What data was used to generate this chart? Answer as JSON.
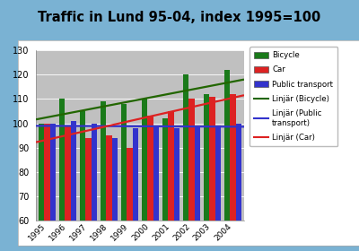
{
  "title": "Traffic in Lund 95-04, index 1995=100",
  "years": [
    1995,
    1996,
    1997,
    1998,
    1999,
    2000,
    2001,
    2002,
    2003,
    2004
  ],
  "bicycle": [
    100,
    110,
    105,
    109,
    108,
    110,
    102,
    120,
    112,
    122
  ],
  "car": [
    100,
    99,
    94,
    95,
    90,
    103,
    105,
    110,
    111,
    112
  ],
  "public": [
    100,
    101,
    100,
    94,
    98,
    99,
    98,
    99,
    99,
    100
  ],
  "bicycle_color": "#1a7a1a",
  "car_color": "#dd2222",
  "public_color": "#3333cc",
  "trend_bicycle_color": "#226600",
  "trend_public_color": "#3333cc",
  "trend_car_color": "#dd2222",
  "bg_outer": "#7ab2d3",
  "bg_inner": "#ffffff",
  "bg_plot": "#c0c0c0",
  "ylim": [
    60,
    130
  ],
  "yticks": [
    60,
    70,
    80,
    90,
    100,
    110,
    120,
    130
  ],
  "bar_width": 0.28,
  "legend_labels": [
    "Bicycle",
    "Car",
    "Public transport",
    "Linjär (Bicycle)",
    "Linjär (Public\ntransport)",
    "Linjär (Car)"
  ]
}
